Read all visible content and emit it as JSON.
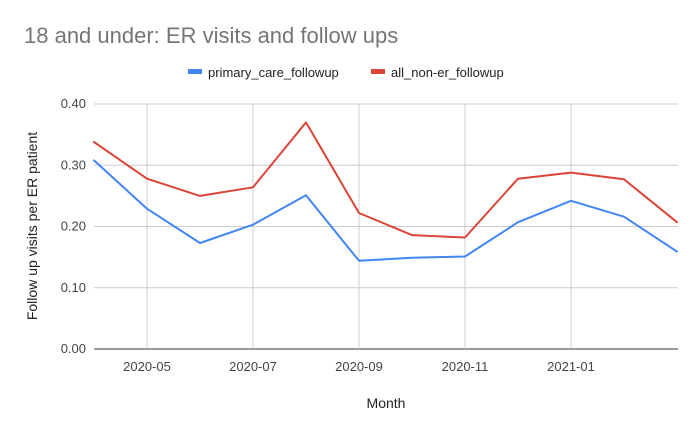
{
  "chart_data": {
    "type": "line",
    "title": "18 and under: ER visits and follow ups",
    "xlabel": "Month",
    "ylabel": "Follow up visits per ER patient",
    "x": [
      "2020-04",
      "2020-05",
      "2020-06",
      "2020-07",
      "2020-08",
      "2020-09",
      "2020-10",
      "2020-11",
      "2020-12",
      "2021-01",
      "2021-02",
      "2021-03"
    ],
    "x_tick_labels": [
      "2020-05",
      "2020-07",
      "2020-09",
      "2020-11",
      "2021-01"
    ],
    "y_tick_labels": [
      "0.00",
      "0.10",
      "0.20",
      "0.30",
      "0.40"
    ],
    "ylim": [
      0,
      0.4
    ],
    "grid": true,
    "legend_position": "top",
    "series": [
      {
        "name": "primary_care_followup",
        "color": "#4285f4",
        "values": [
          0.308,
          0.229,
          0.173,
          0.203,
          0.251,
          0.144,
          0.149,
          0.151,
          0.207,
          0.242,
          0.216,
          0.159
        ]
      },
      {
        "name": "all_non-er_followup",
        "color": "#db4437",
        "values": [
          0.338,
          0.278,
          0.25,
          0.264,
          0.37,
          0.222,
          0.186,
          0.182,
          0.278,
          0.288,
          0.277,
          0.207
        ]
      }
    ]
  }
}
